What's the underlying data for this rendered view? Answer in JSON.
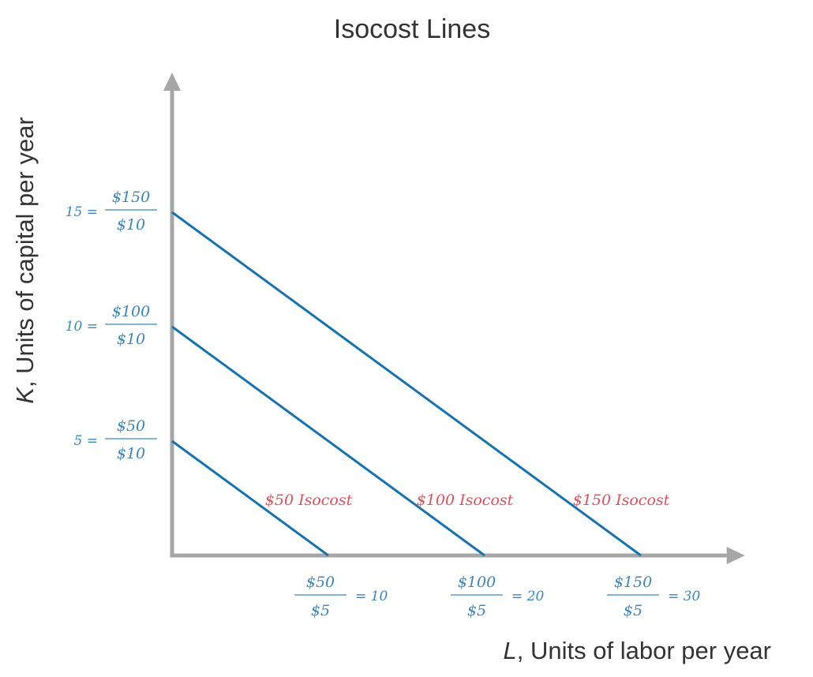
{
  "chart_data": {
    "type": "line",
    "title": "Isocost Lines",
    "xlabel": {
      "var": "L",
      "text": ", Units of labor per year"
    },
    "ylabel": {
      "var": "K",
      "text": ", Units of capital per year"
    },
    "xlim": [
      0,
      36.5
    ],
    "ylim": [
      0,
      21
    ],
    "y_ticks": [
      {
        "value": 5,
        "prefix": "5 =",
        "num": "$50",
        "den": "$10"
      },
      {
        "value": 10,
        "prefix": "10 =",
        "num": "$100",
        "den": "$10"
      },
      {
        "value": 15,
        "prefix": "15 =",
        "num": "$150",
        "den": "$10"
      }
    ],
    "x_ticks": [
      {
        "value": 10,
        "num": "$50",
        "den": "$5",
        "suffix": "= 10"
      },
      {
        "value": 20,
        "num": "$100",
        "den": "$5",
        "suffix": "= 20"
      },
      {
        "value": 30,
        "num": "$150",
        "den": "$5",
        "suffix": "= 30"
      }
    ],
    "series": [
      {
        "name": "$50 Isocost",
        "x": [
          0,
          10
        ],
        "y": [
          5,
          0
        ]
      },
      {
        "name": "$100 Isocost",
        "x": [
          0,
          20
        ],
        "y": [
          10,
          0
        ]
      },
      {
        "name": "$150 Isocost",
        "x": [
          0,
          30
        ],
        "y": [
          15,
          0
        ]
      }
    ],
    "grid": false,
    "legend": "none"
  },
  "colors": {
    "line": "#1673b1",
    "tick_text": "#3a86c0",
    "line_label": "#e0505a",
    "axis": "#a6a6a6",
    "text": "#333333"
  }
}
